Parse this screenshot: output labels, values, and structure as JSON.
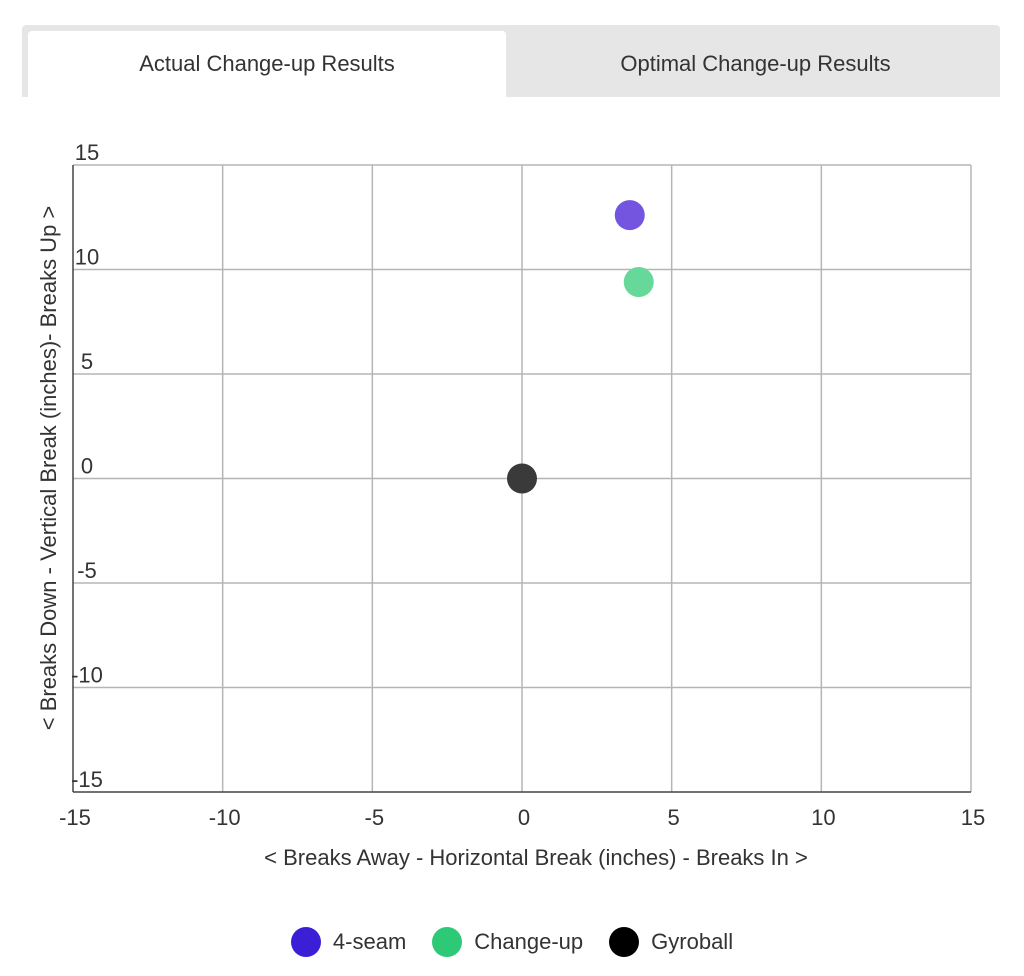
{
  "tabs": [
    {
      "label": "Actual Change-up Results",
      "active": true
    },
    {
      "label": "Optimal Change-up Results",
      "active": false
    }
  ],
  "chart_data": {
    "type": "scatter",
    "title": "",
    "xlabel": "< Breaks Away - Horizontal Break (inches) - Breaks In >",
    "ylabel": "< Breaks Down - Vertical Break (inches)- Breaks Up >",
    "xlim": [
      -15,
      15
    ],
    "ylim": [
      -15,
      15
    ],
    "xticks": [
      -15,
      -10,
      -5,
      0,
      5,
      10,
      15
    ],
    "yticks": [
      15,
      10,
      5,
      0,
      -5,
      -10,
      -15
    ],
    "grid": true,
    "legend_position": "bottom-center",
    "series": [
      {
        "name": "4-seam",
        "color": "#3b1fd6",
        "marker_color": "#7355e0",
        "points": [
          {
            "x": 3.6,
            "y": 12.6
          }
        ]
      },
      {
        "name": "Change-up",
        "color": "#2ec976",
        "marker_color": "#66d99a",
        "points": [
          {
            "x": 3.9,
            "y": 9.4
          }
        ]
      },
      {
        "name": "Gyroball",
        "color": "#000000",
        "marker_color": "#3a3a3a",
        "points": [
          {
            "x": 0,
            "y": 0
          }
        ]
      }
    ]
  }
}
